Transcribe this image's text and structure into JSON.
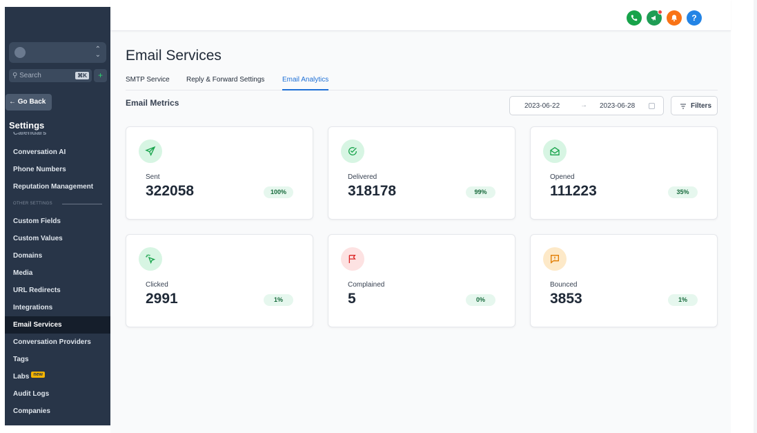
{
  "sidebar": {
    "search_placeholder": "Search",
    "search_shortcut": "⌘K",
    "add_symbol": "+",
    "go_back_label": "← Go Back",
    "heading": "Settings",
    "cut_item": "Calendars",
    "items": [
      {
        "label": "Conversation AI"
      },
      {
        "label": "Phone Numbers"
      },
      {
        "label": "Reputation Management"
      }
    ],
    "section_label": "OTHER SETTINGS",
    "items2": [
      {
        "label": "Custom Fields"
      },
      {
        "label": "Custom Values"
      },
      {
        "label": "Domains"
      },
      {
        "label": "Media"
      },
      {
        "label": "URL Redirects"
      },
      {
        "label": "Integrations"
      },
      {
        "label": "Email Services",
        "active": true
      },
      {
        "label": "Conversation Providers"
      },
      {
        "label": "Tags"
      },
      {
        "label": "Labs",
        "badge": "new"
      },
      {
        "label": "Audit Logs"
      },
      {
        "label": "Companies"
      }
    ]
  },
  "topbar": {
    "help_symbol": "?"
  },
  "page": {
    "title": "Email Services",
    "tabs": [
      {
        "label": "SMTP Service"
      },
      {
        "label": "Reply & Forward Settings"
      },
      {
        "label": "Email Analytics",
        "active": true
      }
    ],
    "metrics_title": "Email Metrics",
    "date_from": "2023-06-22",
    "date_arrow": "→",
    "date_to": "2023-06-28",
    "filters_label": "Filters"
  },
  "cards": [
    {
      "label": "Sent",
      "value": "322058",
      "pct": "100%",
      "icon": "send-icon"
    },
    {
      "label": "Delivered",
      "value": "318178",
      "pct": "99%",
      "icon": "check-circle-icon"
    },
    {
      "label": "Opened",
      "value": "111223",
      "pct": "35%",
      "icon": "mail-open-icon"
    },
    {
      "label": "Clicked",
      "value": "2991",
      "pct": "1%",
      "icon": "click-pointer-icon"
    },
    {
      "label": "Complained",
      "value": "5",
      "pct": "0%",
      "icon": "flag-icon"
    },
    {
      "label": "Bounced",
      "value": "3853",
      "pct": "1%",
      "icon": "alert-message-icon"
    }
  ],
  "colors": {
    "sidebar_bg": "#283548",
    "accent": "#1d6fd6",
    "pct_bg": "#e6f7ee"
  }
}
